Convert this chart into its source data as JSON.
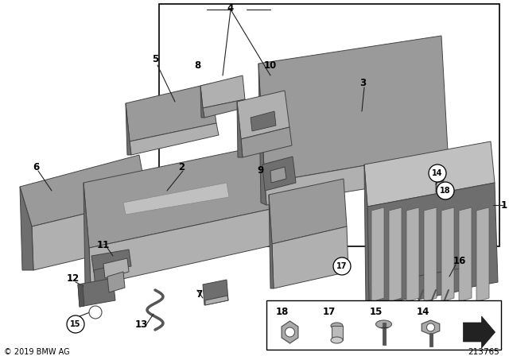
{
  "bg_color": "#ffffff",
  "copyright": "© 2019 BMW AG",
  "diagram_number": "213765",
  "part_gray": "#9a9a9a",
  "part_dark": "#6e6e6e",
  "part_light": "#c0c0c0",
  "part_mid": "#b0b0b0",
  "border_color": "#333333",
  "label_color": "#000000"
}
